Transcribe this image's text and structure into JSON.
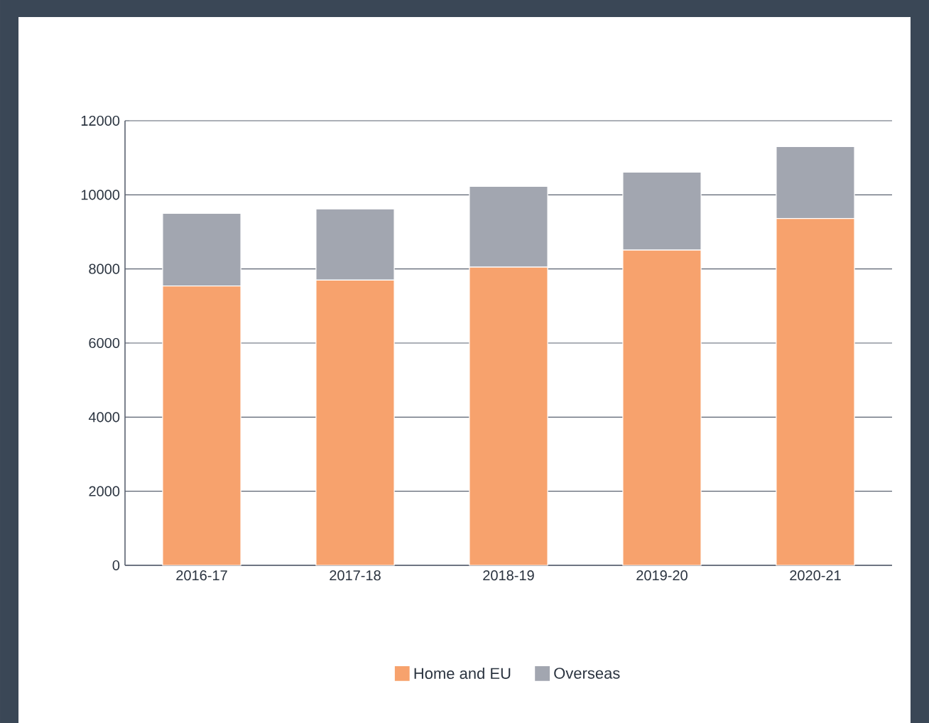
{
  "chart_data": {
    "type": "bar",
    "stacked": true,
    "categories": [
      "2016-17",
      "2017-18",
      "2018-19",
      "2019-20",
      "2020-21"
    ],
    "series": [
      {
        "name": "Home and EU",
        "color": "#f7a26d",
        "values": [
          7540,
          7700,
          8050,
          8510,
          9360
        ]
      },
      {
        "name": "Overseas",
        "color": "#a2a6b0",
        "values": [
          1960,
          1920,
          2180,
          2100,
          1940
        ]
      }
    ],
    "ylim": [
      0,
      12000
    ],
    "yticks": [
      0,
      2000,
      4000,
      6000,
      8000,
      10000,
      12000
    ],
    "grid": "y",
    "legend": "bottom"
  }
}
